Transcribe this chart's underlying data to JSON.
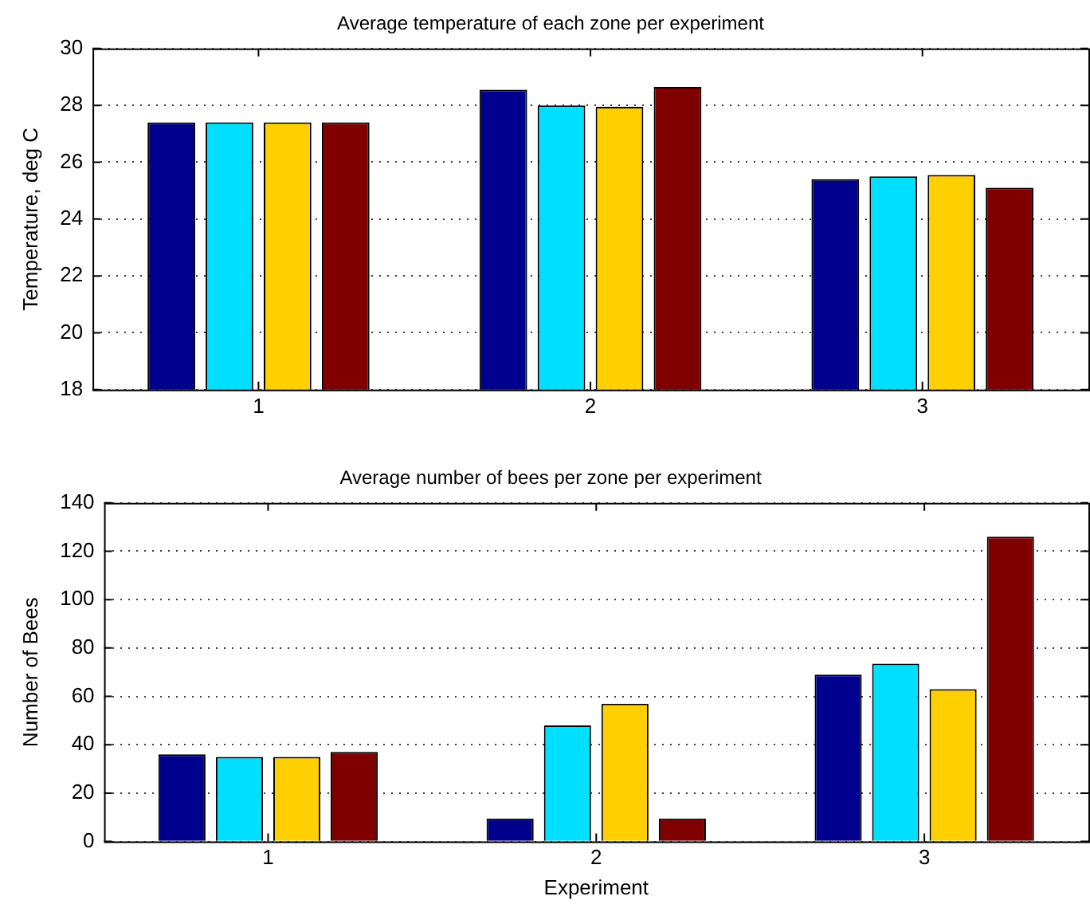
{
  "chart_data": [
    {
      "type": "bar",
      "title": "Average temperature of each zone per experiment",
      "ylabel": "Temperature, deg C",
      "categories": [
        "1",
        "2",
        "3"
      ],
      "series": [
        {
          "color": "#00008f",
          "values": [
            27.4,
            28.55,
            25.4
          ]
        },
        {
          "color": "#00dfff",
          "values": [
            27.4,
            28.0,
            25.5
          ]
        },
        {
          "color": "#ffcf00",
          "values": [
            27.4,
            27.95,
            25.55
          ]
        },
        {
          "color": "#800000",
          "values": [
            27.4,
            28.65,
            25.1
          ]
        }
      ],
      "ylim": [
        18,
        30
      ],
      "yticks": [
        18,
        20,
        22,
        24,
        26,
        28,
        30
      ],
      "grid": "y",
      "legend": false
    },
    {
      "type": "bar",
      "title": "Average number of bees per zone per experiment",
      "xlabel": "Experiment",
      "ylabel": "Number of Bees",
      "categories": [
        "1",
        "2",
        "3"
      ],
      "series": [
        {
          "color": "#00008f",
          "values": [
            36,
            9.5,
            69
          ]
        },
        {
          "color": "#00dfff",
          "values": [
            35,
            48,
            73.5
          ]
        },
        {
          "color": "#ffcf00",
          "values": [
            35,
            57,
            63
          ]
        },
        {
          "color": "#800000",
          "values": [
            37,
            9.5,
            126
          ]
        }
      ],
      "ylim": [
        0,
        140
      ],
      "yticks": [
        0,
        20,
        40,
        60,
        80,
        100,
        120,
        140
      ],
      "grid": "y",
      "legend": false
    }
  ]
}
